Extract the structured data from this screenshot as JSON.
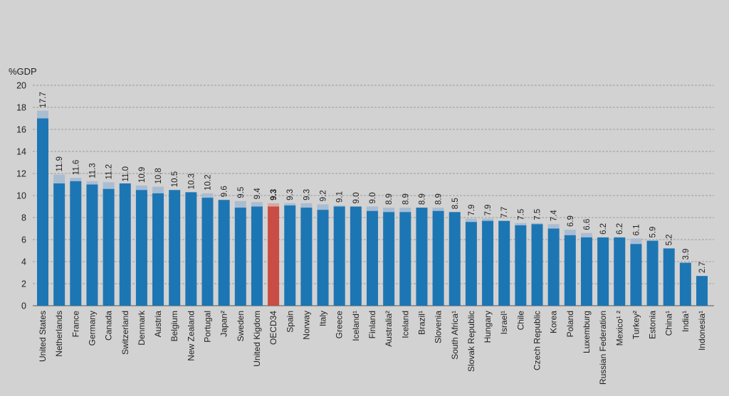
{
  "chart_data": {
    "type": "bar",
    "ylabel": "%GDP",
    "ylim": [
      0,
      20
    ],
    "yticks": [
      0,
      2,
      4,
      6,
      8,
      10,
      12,
      14,
      16,
      18,
      20
    ],
    "grid": true,
    "highlight": "OECD34",
    "colors": {
      "public": "#1d76b4",
      "private": "#a9bdd2",
      "highlight": "#c94c45",
      "highlight_private": "#d8a7a3",
      "grid": "#8a8a8a"
    },
    "categories": [
      "United States",
      "Netherlands",
      "France",
      "Germany",
      "Canada",
      "Switzerland",
      "Denmark",
      "Austria",
      "Belgium",
      "New Zealand",
      "Portugal",
      "Japan²",
      "Sweden",
      "United Kigdom",
      "OECD34",
      "Spain",
      "Norway",
      "Italy",
      "Greece",
      "Iceland¹",
      "Finland",
      "Australia²",
      "Iceland",
      "Brazil¹",
      "Slovenia",
      "South Africa¹",
      "Slovak Republic",
      "Hungary",
      "Israel¹",
      "Chile",
      "Czech Republic",
      "Korea",
      "Poland",
      "Luxemburg",
      "Russian Federation",
      "Mexico¹ ²",
      "Turkey²",
      "Estonia",
      "China¹",
      "India¹",
      "Indonesia¹"
    ],
    "total_labels": [
      "17.7",
      "11.9",
      "11.6",
      "11.3",
      "11.2",
      "11.0",
      "10.9",
      "10.8",
      "10.5",
      "10.3",
      "10.2",
      "9.6",
      "9.5",
      "9.4",
      "9.3",
      "9.3",
      "9.3",
      "9.2",
      "9.1",
      "9.0",
      "9.0",
      "8.9",
      "8.9",
      "8.9",
      "8.9",
      "8.5",
      "7.9",
      "7.9",
      "7.7",
      "7.5",
      "7.5",
      "7.4",
      "6.9",
      "6.6",
      "6.2",
      "6.2",
      "6.1",
      "5.9",
      "5.2",
      "3.9",
      "2.7"
    ],
    "series": [
      {
        "values": [
          17.0,
          11.1,
          11.3,
          11.0,
          10.6,
          11.1,
          10.5,
          10.2,
          10.5,
          10.3,
          9.8,
          9.6,
          8.9,
          9.0,
          9.0,
          9.1,
          8.9,
          8.7,
          9.0,
          9.0,
          8.6,
          8.5,
          8.5,
          8.9,
          8.6,
          8.5,
          7.6,
          7.7,
          7.7,
          7.3,
          7.4,
          7.0,
          6.4,
          6.2,
          6.2,
          6.2,
          5.6,
          5.9,
          5.2,
          3.9,
          2.7
        ]
      },
      {
        "values": [
          17.7,
          11.9,
          11.6,
          11.3,
          11.2,
          11.0,
          10.9,
          10.8,
          10.5,
          10.3,
          10.2,
          9.6,
          9.5,
          9.4,
          9.3,
          9.3,
          9.3,
          9.2,
          9.1,
          9.0,
          9.0,
          8.9,
          8.9,
          8.9,
          8.9,
          8.5,
          7.9,
          7.9,
          7.7,
          7.5,
          7.5,
          7.4,
          6.9,
          6.6,
          6.2,
          6.2,
          6.1,
          5.9,
          5.2,
          3.9,
          2.7
        ]
      }
    ]
  }
}
